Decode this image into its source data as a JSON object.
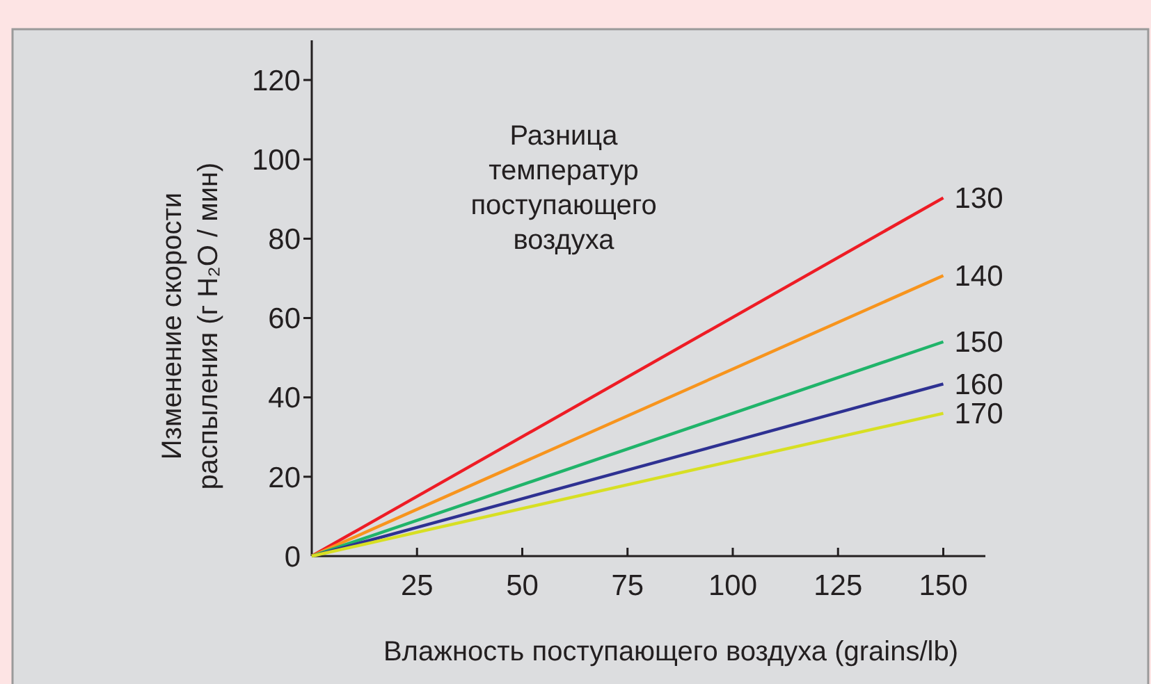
{
  "chart_data": {
    "type": "line",
    "xlabel": "Влажность поступающего воздуха (grains/lb)",
    "ylabel": "Изменение скорости распыления (г H₂O / мин)",
    "legend_title": "Разница температур поступающего воздуха",
    "x": [
      0,
      150
    ],
    "xlim": [
      0,
      160
    ],
    "xticks": [
      25,
      50,
      75,
      100,
      125,
      150
    ],
    "ylim": [
      0,
      130
    ],
    "yticks": [
      0,
      20,
      40,
      60,
      80,
      100,
      120
    ],
    "grid": false,
    "marker": "none",
    "line_style": "solid",
    "series": [
      {
        "name": "130",
        "color": "#ee1c25",
        "values": [
          0,
          90.3
        ]
      },
      {
        "name": "140",
        "color": "#f7941d",
        "values": [
          0,
          70.7
        ]
      },
      {
        "name": "150",
        "color": "#20b46a",
        "values": [
          0,
          54
        ]
      },
      {
        "name": "160",
        "color": "#2e3192",
        "values": [
          0,
          43.4
        ]
      },
      {
        "name": "170",
        "color": "#d7df23",
        "values": [
          0,
          36
        ]
      }
    ]
  }
}
